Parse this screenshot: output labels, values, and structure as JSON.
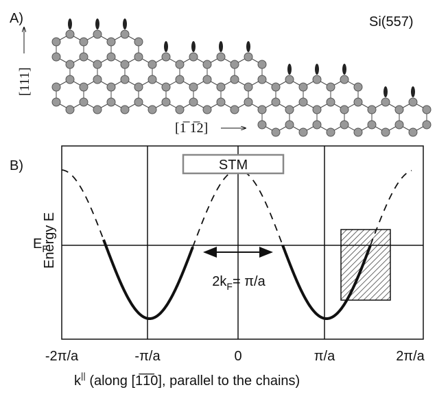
{
  "panel_a": {
    "label": "A)",
    "surface": "Si(557)",
    "axis_vertical": "[111]",
    "axis_horizontal": "[1̅ 1̅2]"
  },
  "panel_b": {
    "label": "B)",
    "box_label": "STM",
    "y_axis_label": "Energy E",
    "fermi_label": {
      "main": "E",
      "sub": "F"
    },
    "nesting_label": {
      "main": "2k",
      "sub": "F",
      "rest": "= π/a"
    },
    "x_ticks": [
      "-2π/a",
      "-π/a",
      "0",
      "π/a",
      "2π/a"
    ],
    "x_axis_label": {
      "main": "k",
      "sup": "||",
      "rest": "  (along [1̅1̅0], parallel to the chains)"
    }
  }
}
